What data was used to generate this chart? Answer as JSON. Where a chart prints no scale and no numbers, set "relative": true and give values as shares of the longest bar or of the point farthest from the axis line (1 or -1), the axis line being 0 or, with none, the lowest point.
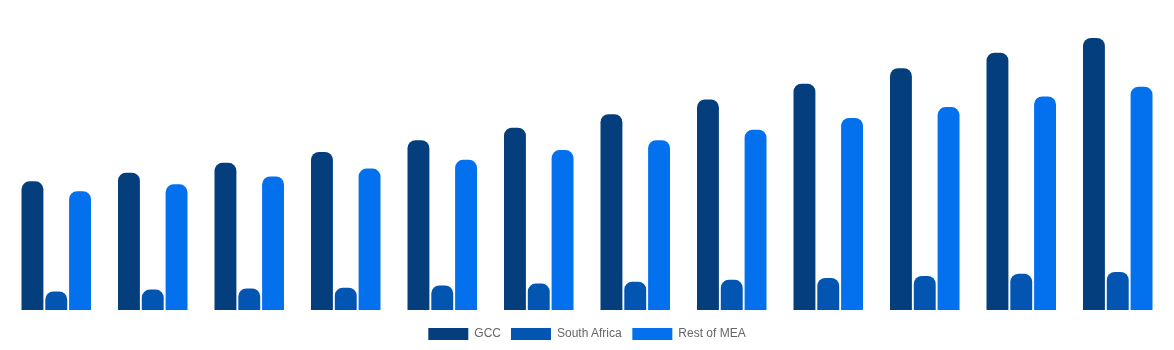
{
  "chart_data": {
    "type": "bar",
    "relative": true,
    "categories": [
      null,
      null,
      null,
      null,
      null,
      null,
      null,
      null,
      null,
      null,
      null,
      null
    ],
    "legend": "bottom",
    "grid": false,
    "series": [
      {
        "name": "GCC",
        "color": "#043e7d",
        "values": [
          0.473,
          0.505,
          0.541,
          0.581,
          0.624,
          0.67,
          0.72,
          0.774,
          0.832,
          0.889,
          0.946,
          1
        ]
      },
      {
        "name": "South Africa",
        "color": "#0256b2",
        "values": [
          0.068,
          0.075,
          0.079,
          0.082,
          0.09,
          0.097,
          0.104,
          0.111,
          0.118,
          0.125,
          0.133,
          0.14
        ]
      },
      {
        "name": "Rest of MEA",
        "color": "#0370ee",
        "values": [
          0.437,
          0.462,
          0.491,
          0.52,
          0.552,
          0.588,
          0.624,
          0.663,
          0.706,
          0.746,
          0.785,
          0.821
        ]
      }
    ]
  }
}
